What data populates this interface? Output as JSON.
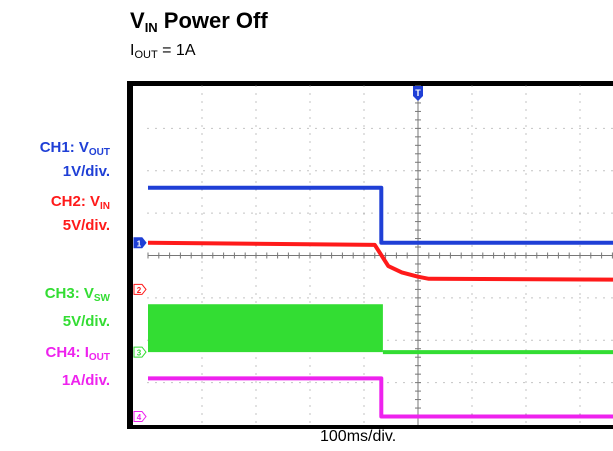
{
  "header": {
    "title_main": "V",
    "title_sub": "IN",
    "title_rest": " Power Off",
    "subtitle_main": "I",
    "subtitle_sub": "OUT",
    "subtitle_rest": " = 1A"
  },
  "channels": [
    {
      "id": "ch1",
      "name_main": "CH1: V",
      "name_sub": "OUT",
      "scale": "1V/div.",
      "color": "#1f3fd6"
    },
    {
      "id": "ch2",
      "name_main": "CH2: V",
      "name_sub": "IN",
      "scale": "5V/div.",
      "color": "#ff1a1a"
    },
    {
      "id": "ch3",
      "name_main": "CH3: V",
      "name_sub": "SW",
      "scale": "5V/div.",
      "color": "#33dd33"
    },
    {
      "id": "ch4",
      "name_main": "CH4: I",
      "name_sub": "OUT",
      "scale": "1A/div.",
      "color": "#ee22ee"
    }
  ],
  "chart_data": {
    "type": "line",
    "xlabel": "100ms/div.",
    "trigger_marker": "T",
    "series": [
      {
        "name": "CH1: VOUT",
        "color": "#1f3fd6",
        "points": [
          [
            0,
            5.6
          ],
          [
            4.32,
            5.6
          ],
          [
            4.32,
            4.3
          ],
          [
            9,
            4.3
          ]
        ]
      },
      {
        "name": "CH2: VIN",
        "color": "#ff1a1a",
        "points": [
          [
            0,
            4.3
          ],
          [
            4.2,
            4.25
          ],
          [
            4.45,
            3.75
          ],
          [
            4.7,
            3.6
          ],
          [
            5.0,
            3.5
          ],
          [
            5.2,
            3.45
          ],
          [
            9,
            3.43
          ]
        ]
      },
      {
        "name": "CH3: VSW",
        "color": "#33dd33",
        "band": [
          0,
          4.35,
          1.72,
          2.85
        ],
        "points": [
          [
            4.35,
            1.72
          ],
          [
            9,
            1.72
          ]
        ]
      },
      {
        "name": "CH4: IOUT",
        "color": "#ee22ee",
        "points": [
          [
            0,
            1.1
          ],
          [
            4.32,
            1.1
          ],
          [
            4.32,
            0.2
          ],
          [
            9,
            0.2
          ]
        ]
      }
    ]
  }
}
